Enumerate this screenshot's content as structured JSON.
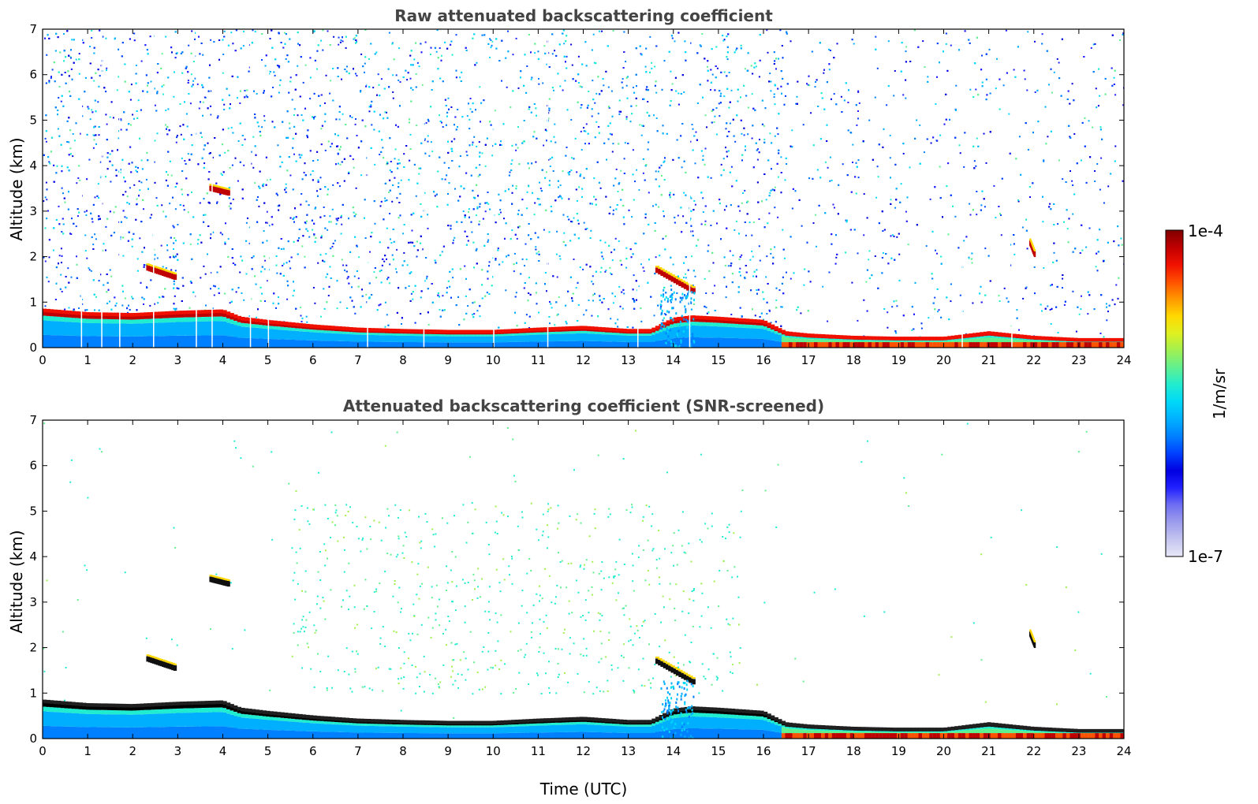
{
  "chart_data": [
    {
      "type": "heatmap",
      "title": "Raw attenuated backscattering coefficient",
      "xlabel": "",
      "ylabel": "Altitude (km)",
      "xlim": [
        0,
        24
      ],
      "ylim": [
        0,
        7
      ],
      "x_ticks": [
        "0",
        "1",
        "2",
        "3",
        "4",
        "5",
        "6",
        "7",
        "8",
        "9",
        "10",
        "11",
        "12",
        "13",
        "14",
        "15",
        "16",
        "17",
        "18",
        "19",
        "20",
        "21",
        "22",
        "23",
        "24"
      ],
      "y_ticks": [
        "0",
        "1",
        "2",
        "3",
        "4",
        "5",
        "6",
        "7"
      ],
      "colorscale": "jet",
      "background_noise": "dense speckle at all altitudes (blue to green), sparse after 16.5 UTC",
      "layer_top_km": {
        "x": [
          0,
          1,
          2,
          3,
          4,
          4.4,
          5,
          6,
          7,
          8,
          9,
          10,
          11,
          12,
          13,
          13.5,
          14,
          14.4,
          15,
          16,
          16.5,
          17,
          18,
          19,
          20,
          21,
          22,
          23,
          24
        ],
        "y": [
          0.8,
          0.72,
          0.7,
          0.75,
          0.78,
          0.62,
          0.55,
          0.45,
          0.38,
          0.35,
          0.33,
          0.33,
          0.38,
          0.42,
          0.35,
          0.35,
          0.6,
          0.65,
          0.62,
          0.55,
          0.3,
          0.25,
          0.2,
          0.18,
          0.18,
          0.3,
          0.2,
          0.15,
          0.15
        ]
      },
      "elevated_layers": [
        {
          "time": [
            2.3,
            2.9
          ],
          "alt_km": [
            1.75,
            1.55
          ]
        },
        {
          "time": [
            3.7,
            4.1
          ],
          "alt_km": [
            3.5,
            3.4
          ]
        },
        {
          "time": [
            13.6,
            14.4
          ],
          "alt_km": [
            1.7,
            1.25
          ]
        },
        {
          "time": [
            21.9,
            22.0
          ],
          "alt_km": [
            2.3,
            2.05
          ]
        }
      ]
    },
    {
      "type": "heatmap",
      "title": "Attenuated backscattering coefficient (SNR-screened)",
      "xlabel": "Time (UTC)",
      "ylabel": "Altitude (km)",
      "xlim": [
        0,
        24
      ],
      "ylim": [
        0,
        7
      ],
      "x_ticks": [
        "0",
        "1",
        "2",
        "3",
        "4",
        "5",
        "6",
        "7",
        "8",
        "9",
        "10",
        "11",
        "12",
        "13",
        "14",
        "15",
        "16",
        "17",
        "18",
        "19",
        "20",
        "21",
        "22",
        "23",
        "24"
      ],
      "y_ticks": [
        "0",
        "1",
        "2",
        "3",
        "4",
        "5",
        "6",
        "7"
      ],
      "colorscale": "jet",
      "background_noise": "sparse cyan-green speckle between 6 and 15 UTC, 1 to 5 km",
      "screened": true
    }
  ],
  "colorbar": {
    "max_label": "1e-4",
    "min_label": "1e-7",
    "unit_label": "1/m/sr",
    "colors": [
      "#e8e8f8",
      "#c4c4f0",
      "#9c9cec",
      "#6f6ff2",
      "#2020ff",
      "#0000e0",
      "#0040ff",
      "#0080ff",
      "#00b0ff",
      "#00d8f8",
      "#20ecd0",
      "#60f090",
      "#a0f050",
      "#e0f020",
      "#ffd800",
      "#ff9800",
      "#ff5000",
      "#f01000",
      "#c00000",
      "#800000"
    ]
  }
}
